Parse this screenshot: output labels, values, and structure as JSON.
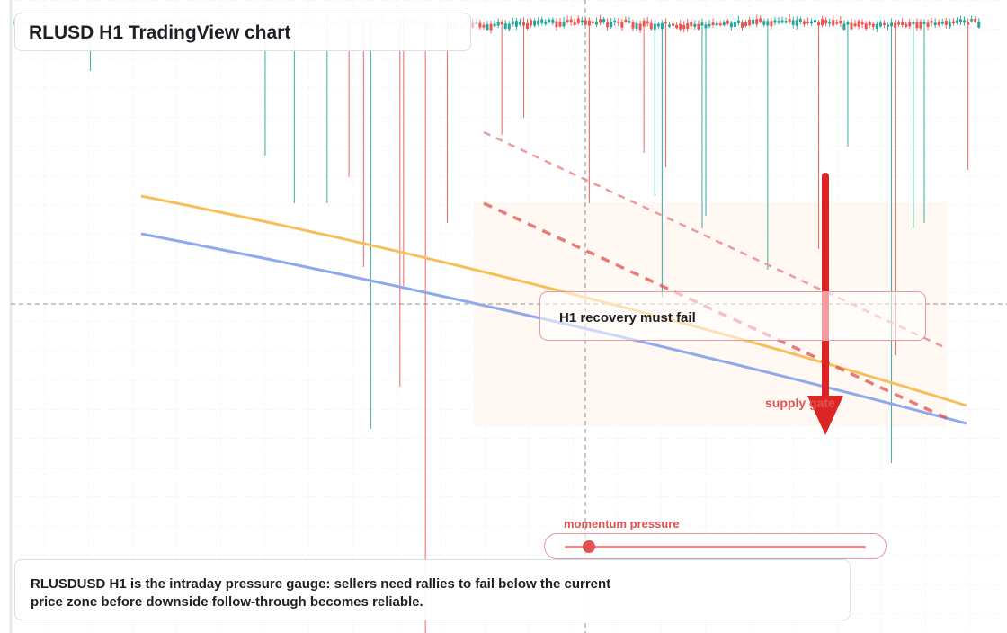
{
  "title": "RLUSD H1 TradingView chart",
  "callout": {
    "text": "H1 recovery must fail"
  },
  "supply_label": "supply gate",
  "momentum": {
    "label": "momentum pressure",
    "value": 0.05
  },
  "summary": "RLUSDUSD H1 is the intraday pressure gauge: sellers need rallies to fail below the current price zone before downside follow-through becomes reliable.",
  "colors": {
    "bull": "#26a69a",
    "bear": "#ef5350",
    "ema_fast": "#f7bf5b",
    "ema_slow": "#8fa9ef",
    "resistance": "#e15252",
    "arrow": "#dc2626",
    "zone": "#fff4ec"
  },
  "icons": {
    "arrow": "down-arrow-icon"
  }
}
